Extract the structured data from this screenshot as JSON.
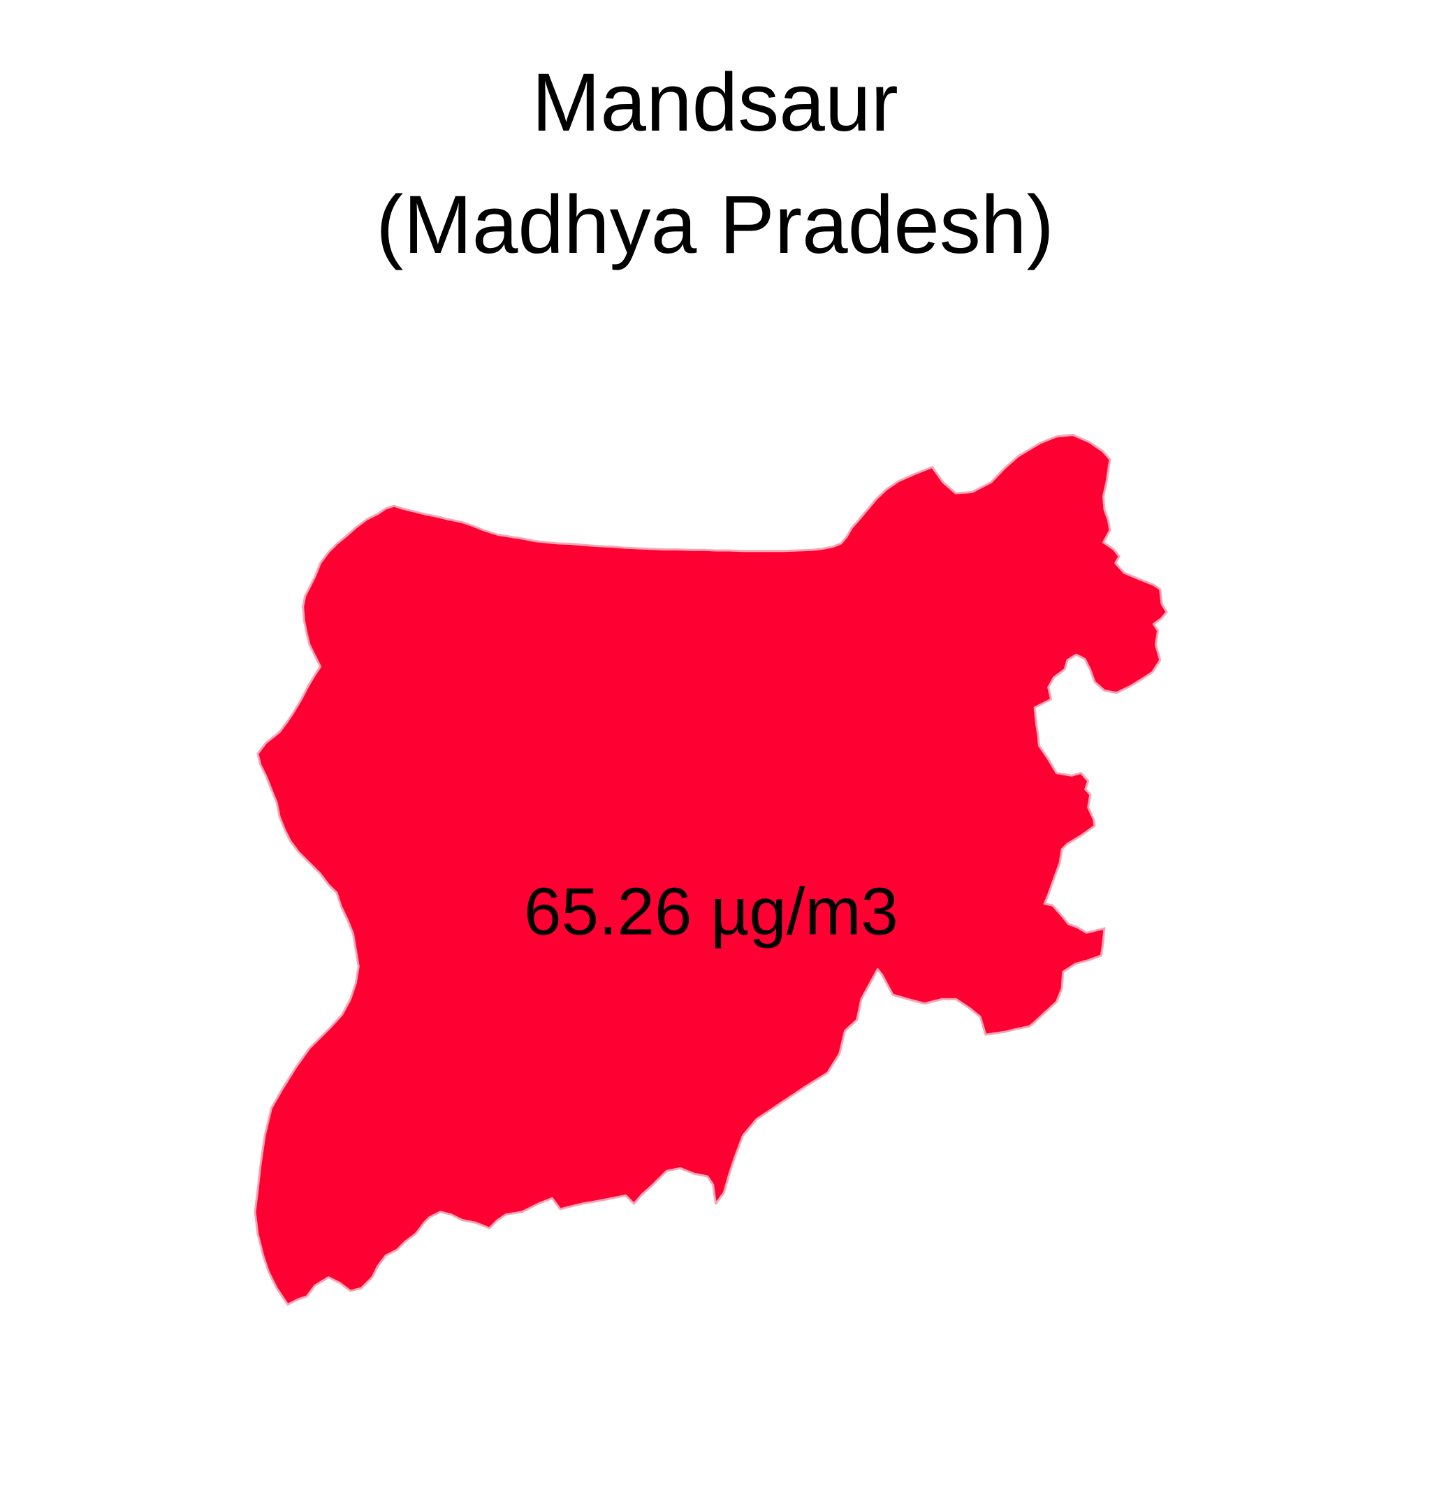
{
  "title": {
    "district": "Mandsaur",
    "state": "(Madhya Pradesh)"
  },
  "map": {
    "fill_color": "#FF0033",
    "border_color": "#F4A6B4",
    "label_color": "#000000",
    "value_label": "65.26 µg/m3"
  },
  "chart_data": {
    "type": "choropleth",
    "region": "Mandsaur",
    "state": "Madhya Pradesh",
    "value": 65.26,
    "unit": "µg/m3"
  }
}
